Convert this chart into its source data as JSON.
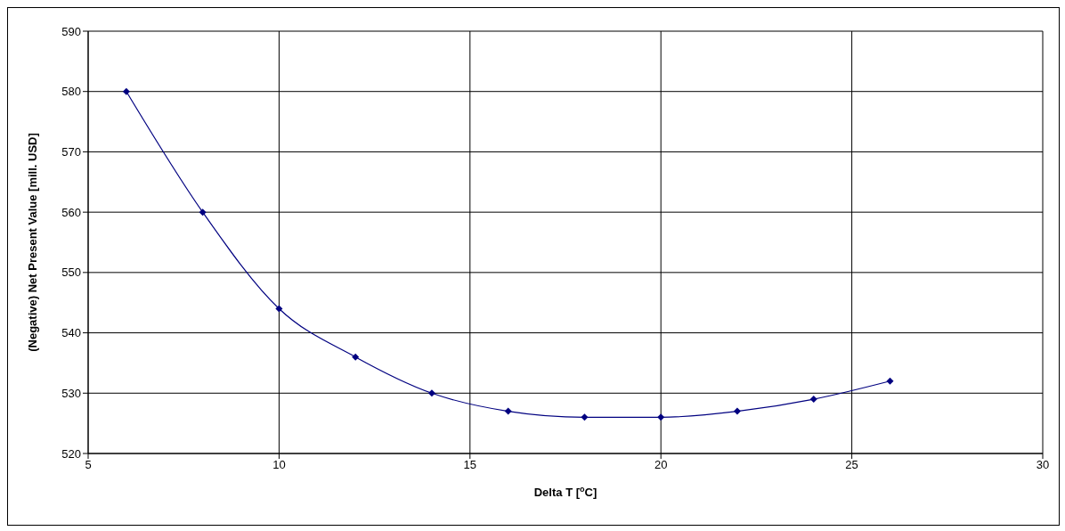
{
  "chart_data": {
    "type": "line",
    "xlabel": "Delta T [$^{o}$C]",
    "ylabel": "(Negative) Net Present Value [mill. USD]",
    "x": [
      6,
      8,
      10,
      12,
      14,
      16,
      18,
      20,
      22,
      24,
      26
    ],
    "series": [
      {
        "color": "#000080",
        "values": [
          580,
          560,
          544,
          536,
          530,
          527,
          526,
          526,
          527,
          529,
          532
        ]
      }
    ],
    "xlim": [
      5,
      30
    ],
    "xticks": [
      5,
      10,
      15,
      20,
      25,
      30
    ],
    "ylim": [
      520,
      590
    ],
    "yticks": [
      520,
      530,
      540,
      550,
      560,
      570,
      580,
      590
    ],
    "grid": true,
    "legend": false,
    "marker": "diamond",
    "line_style": "solid"
  }
}
